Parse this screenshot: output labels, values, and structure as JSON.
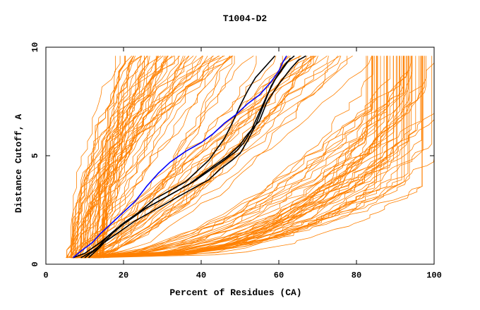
{
  "chart_data": {
    "type": "line",
    "title": "T1004-D2",
    "xlabel": "Percent of Residues (CA)",
    "ylabel": "Distance Cutoff, A",
    "xlim": [
      0,
      100
    ],
    "ylim": [
      0,
      10
    ],
    "x_ticks": [
      0,
      20,
      40,
      60,
      80,
      100
    ],
    "y_ticks": [
      0,
      5,
      10
    ],
    "x_tick_labels": [
      "0",
      "20",
      "40",
      "60",
      "80",
      "100"
    ],
    "y_tick_labels": [
      "0",
      "5",
      "10"
    ],
    "grid": false,
    "colors": {
      "background_curves": "#ff8000",
      "highlight_black": "#000000",
      "highlight_blue": "#0000ff",
      "axis": "#000000"
    },
    "background_curve_count": 140,
    "highlighted_series": [
      {
        "name": "black-curve-1",
        "color": "#000000",
        "points": [
          [
            7,
            0.3
          ],
          [
            10,
            0.5
          ],
          [
            14,
            1.0
          ],
          [
            18,
            1.6
          ],
          [
            22,
            2.1
          ],
          [
            26,
            2.6
          ],
          [
            30,
            3.0
          ],
          [
            34,
            3.4
          ],
          [
            38,
            3.8
          ],
          [
            42,
            4.3
          ],
          [
            46,
            4.8
          ],
          [
            49,
            5.2
          ],
          [
            51,
            5.6
          ],
          [
            53,
            6.2
          ],
          [
            55,
            7.0
          ],
          [
            57,
            7.8
          ],
          [
            59,
            8.5
          ],
          [
            61,
            9.0
          ],
          [
            63,
            9.5
          ]
        ]
      },
      {
        "name": "black-curve-2",
        "color": "#000000",
        "points": [
          [
            9,
            0.3
          ],
          [
            12,
            0.6
          ],
          [
            15,
            1.0
          ],
          [
            19,
            1.5
          ],
          [
            23,
            2.0
          ],
          [
            27,
            2.4
          ],
          [
            31,
            2.8
          ],
          [
            35,
            3.2
          ],
          [
            38,
            3.5
          ],
          [
            42,
            3.9
          ],
          [
            45,
            4.4
          ],
          [
            48,
            4.8
          ],
          [
            50,
            5.1
          ],
          [
            52,
            5.7
          ],
          [
            54,
            6.4
          ],
          [
            56,
            7.3
          ],
          [
            58,
            8.2
          ],
          [
            60,
            8.8
          ],
          [
            62,
            9.3
          ],
          [
            64,
            9.6
          ]
        ]
      },
      {
        "name": "black-curve-3",
        "color": "#000000",
        "points": [
          [
            10,
            0.3
          ],
          [
            13,
            0.7
          ],
          [
            16,
            1.3
          ],
          [
            20,
            1.9
          ],
          [
            24,
            2.4
          ],
          [
            28,
            3.0
          ],
          [
            32,
            3.4
          ],
          [
            36,
            3.8
          ],
          [
            39,
            4.3
          ],
          [
            42,
            4.8
          ],
          [
            44,
            5.3
          ],
          [
            46,
            5.8
          ],
          [
            48,
            6.5
          ],
          [
            50,
            7.3
          ],
          [
            52,
            8.0
          ],
          [
            54,
            8.6
          ],
          [
            56,
            9.0
          ],
          [
            58,
            9.4
          ],
          [
            59,
            9.6
          ]
        ]
      },
      {
        "name": "black-curve-4",
        "color": "#000000",
        "points": [
          [
            11,
            0.3
          ],
          [
            14,
            0.8
          ],
          [
            17,
            1.4
          ],
          [
            21,
            2.0
          ],
          [
            25,
            2.5
          ],
          [
            29,
            2.9
          ],
          [
            33,
            3.3
          ],
          [
            37,
            3.7
          ],
          [
            40,
            4.1
          ],
          [
            43,
            4.5
          ],
          [
            47,
            5.0
          ],
          [
            50,
            5.5
          ],
          [
            52,
            6.0
          ],
          [
            55,
            6.6
          ],
          [
            57,
            7.5
          ],
          [
            60,
            8.3
          ],
          [
            63,
            9.0
          ],
          [
            65,
            9.4
          ],
          [
            67,
            9.6
          ]
        ]
      },
      {
        "name": "blue-curve",
        "color": "#0000ff",
        "points": [
          [
            7,
            0.3
          ],
          [
            9,
            0.6
          ],
          [
            12,
            1.0
          ],
          [
            14,
            1.4
          ],
          [
            17,
            1.9
          ],
          [
            20,
            2.4
          ],
          [
            23,
            2.9
          ],
          [
            26,
            3.6
          ],
          [
            29,
            4.2
          ],
          [
            32,
            4.7
          ],
          [
            36,
            5.2
          ],
          [
            40,
            5.6
          ],
          [
            43,
            6.0
          ],
          [
            46,
            6.5
          ],
          [
            49,
            6.9
          ],
          [
            52,
            7.4
          ],
          [
            55,
            7.8
          ],
          [
            58,
            8.4
          ],
          [
            60,
            8.9
          ],
          [
            61,
            9.3
          ],
          [
            62,
            9.6
          ]
        ]
      }
    ]
  }
}
